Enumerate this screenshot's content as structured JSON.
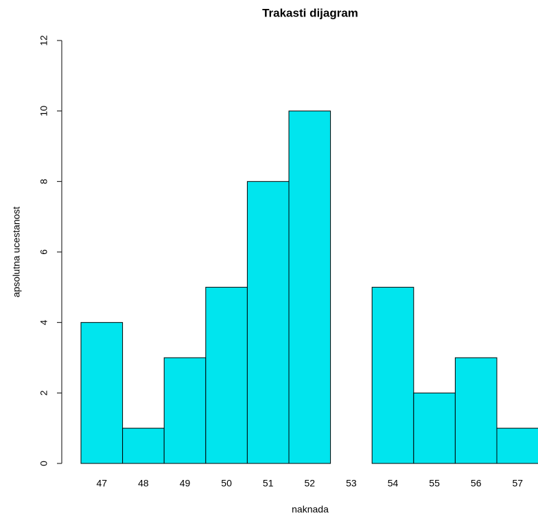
{
  "chart_data": {
    "type": "bar",
    "title": "Trakasti dijagram",
    "x_label": "naknada",
    "y_label": "apsolutna ucestanost",
    "categories": [
      "47",
      "48",
      "49",
      "50",
      "51",
      "52",
      "53",
      "54",
      "55",
      "56",
      "57"
    ],
    "values": [
      4,
      1,
      3,
      5,
      8,
      10,
      0,
      5,
      2,
      3,
      1
    ],
    "color": "#00e5ee",
    "ylim": [
      0,
      12
    ],
    "yticks": [
      0,
      2,
      4,
      6,
      8,
      10,
      12
    ]
  }
}
